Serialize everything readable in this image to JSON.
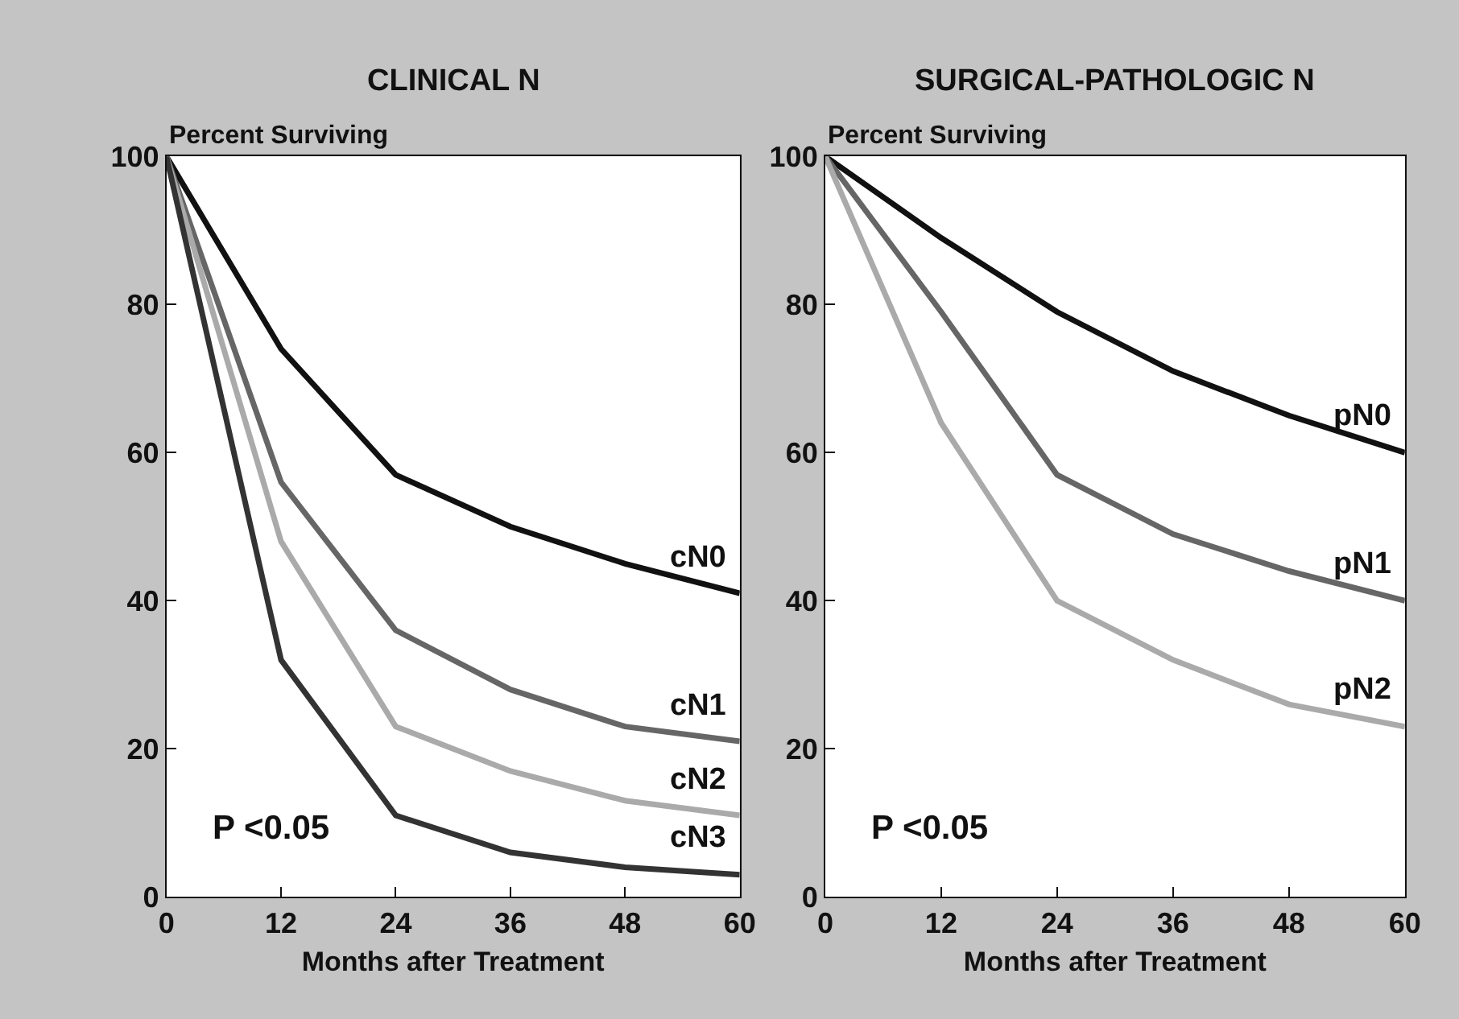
{
  "chart_data": [
    {
      "type": "line",
      "title": "CLINICAL N",
      "ylabel": "Percent Surviving",
      "xlabel": "Months after Treatment",
      "x": [
        0,
        12,
        24,
        36,
        48,
        60
      ],
      "series": [
        {
          "name": "cN0",
          "color": "#111111",
          "values": [
            100,
            74,
            57,
            50,
            45,
            41
          ]
        },
        {
          "name": "cN1",
          "color": "#666666",
          "values": [
            100,
            56,
            36,
            28,
            23,
            21
          ]
        },
        {
          "name": "cN2",
          "color": "#aaaaaa",
          "values": [
            100,
            48,
            23,
            17,
            13,
            11
          ]
        },
        {
          "name": "cN3",
          "color": "#333333",
          "values": [
            100,
            32,
            11,
            6,
            4,
            3
          ]
        }
      ],
      "xlim": [
        0,
        60
      ],
      "ylim": [
        0,
        100
      ],
      "xticks": [
        0,
        12,
        24,
        36,
        48,
        60
      ],
      "yticks": [
        0,
        20,
        40,
        60,
        80,
        100
      ],
      "annotations": [
        "P <0.05"
      ],
      "grid": false,
      "marker": "none",
      "line_style": "solid"
    },
    {
      "type": "line",
      "title": "SURGICAL-PATHOLOGIC N",
      "ylabel": "Percent Surviving",
      "xlabel": "Months after Treatment",
      "x": [
        0,
        12,
        24,
        36,
        48,
        60
      ],
      "series": [
        {
          "name": "pN0",
          "color": "#111111",
          "values": [
            100,
            89,
            79,
            71,
            65,
            60
          ]
        },
        {
          "name": "pN1",
          "color": "#666666",
          "values": [
            100,
            79,
            57,
            49,
            44,
            40
          ]
        },
        {
          "name": "pN2",
          "color": "#aaaaaa",
          "values": [
            100,
            64,
            40,
            32,
            26,
            23
          ]
        }
      ],
      "xlim": [
        0,
        60
      ],
      "ylim": [
        0,
        100
      ],
      "xticks": [
        0,
        12,
        24,
        36,
        48,
        60
      ],
      "yticks": [
        0,
        20,
        40,
        60,
        80,
        100
      ],
      "annotations": [
        "P <0.05"
      ],
      "grid": false,
      "marker": "none",
      "line_style": "solid"
    }
  ]
}
